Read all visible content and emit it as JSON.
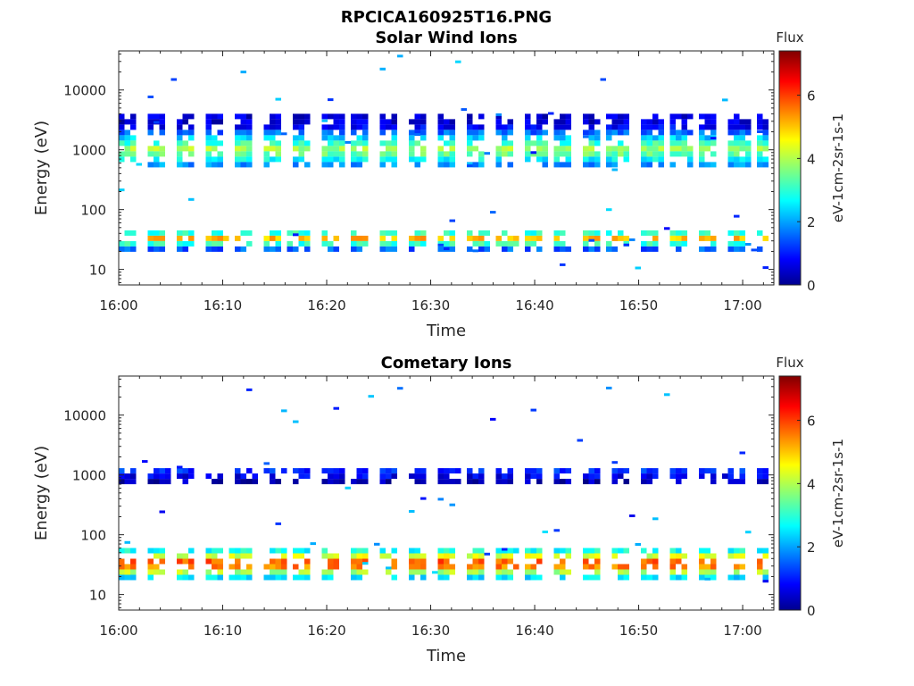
{
  "figure_title": "RPCICA160925T16.PNG",
  "chart_data": [
    {
      "type": "heatmap",
      "title": "Solar Wind Ions",
      "xlabel": "Time",
      "ylabel": "Energy (eV)",
      "y_scale": "log",
      "ylim": [
        5.5,
        45000
      ],
      "x_ticks": [
        "16:00",
        "16:10",
        "16:20",
        "16:30",
        "16:40",
        "16:50",
        "17:00"
      ],
      "y_ticks": [
        {
          "value": 10,
          "label": "10"
        },
        {
          "value": 100,
          "label": "100"
        },
        {
          "value": 1000,
          "label": "1000"
        },
        {
          "value": 10000,
          "label": "10000"
        }
      ],
      "xlim": [
        "16:00",
        "17:03"
      ],
      "colorbar": {
        "title": "Flux",
        "label": "eV-1cm-2sr-1s-1",
        "ticks": [
          "0",
          "2",
          "4",
          "6"
        ],
        "range": [
          0,
          7.4
        ],
        "colormap": "jet"
      },
      "bands": [
        {
          "name": "solar-wind-peak",
          "energy_center": 1000,
          "energy_range": [
            600,
            4000
          ],
          "flux_range": [
            1,
            4.5
          ]
        },
        {
          "name": "low-energy-band",
          "energy_center": 33,
          "energy_range": [
            22,
            45
          ],
          "flux_range": [
            2,
            5.5
          ]
        }
      ]
    },
    {
      "type": "heatmap",
      "title": "Cometary Ions",
      "xlabel": "Time",
      "ylabel": "Energy (eV)",
      "y_scale": "log",
      "ylim": [
        5.5,
        45000
      ],
      "x_ticks": [
        "16:00",
        "16:10",
        "16:20",
        "16:30",
        "16:40",
        "16:50",
        "17:00"
      ],
      "y_ticks": [
        {
          "value": 10,
          "label": "10"
        },
        {
          "value": 100,
          "label": "100"
        },
        {
          "value": 1000,
          "label": "1000"
        },
        {
          "value": 10000,
          "label": "10000"
        }
      ],
      "xlim": [
        "16:00",
        "17:03"
      ],
      "colorbar": {
        "title": "Flux",
        "label": "eV-1cm-2sr-1s-1",
        "ticks": [
          "0",
          "2",
          "4",
          "6"
        ],
        "range": [
          0,
          7.4
        ],
        "colormap": "jet"
      },
      "bands": [
        {
          "name": "cometary-peak",
          "energy_center": 33,
          "energy_range": [
            18,
            60
          ],
          "flux_range": [
            2.5,
            6.8
          ]
        },
        {
          "name": "high-energy-band",
          "energy_center": 1100,
          "energy_range": [
            850,
            1300
          ],
          "flux_range": [
            0.8,
            2
          ]
        }
      ]
    }
  ]
}
